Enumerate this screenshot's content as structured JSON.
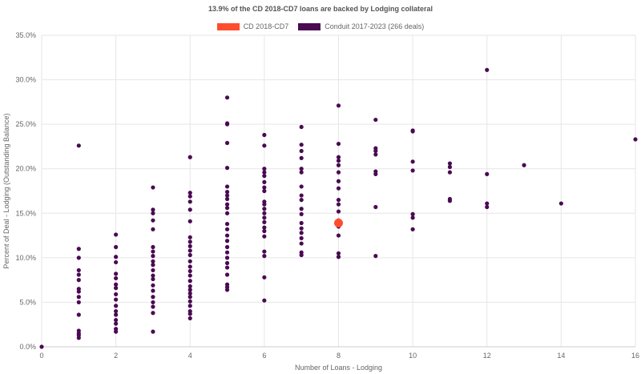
{
  "chart_data": {
    "type": "scatter",
    "title": "13.9% of the CD 2018-CD7 loans are backed by Lodging collateral",
    "xlabel": "Number of Loans - Lodging",
    "ylabel": "Percent of Deal - Lodging (Outstanding Balance)",
    "xlim": [
      0,
      16
    ],
    "ylim": [
      0,
      35
    ],
    "x_ticks": [
      "0",
      "2",
      "4",
      "6",
      "8",
      "10",
      "12",
      "14",
      "16"
    ],
    "y_ticks": [
      "0.0%",
      "5.0%",
      "10.0%",
      "15.0%",
      "20.0%",
      "25.0%",
      "30.0%",
      "35.0%"
    ],
    "grid": true,
    "legend_position": "top-center",
    "series": [
      {
        "name": "CD 2018-CD7",
        "color": "#ff4d2e",
        "points": [
          [
            8,
            13.9
          ]
        ]
      },
      {
        "name": "Conduit 2017-2023 (266 deals)",
        "color": "#4a0a52",
        "points": [
          [
            0,
            0.0
          ],
          [
            1,
            22.6
          ],
          [
            1,
            11.0
          ],
          [
            1,
            10.0
          ],
          [
            1,
            8.6
          ],
          [
            1,
            8.1
          ],
          [
            1,
            7.5
          ],
          [
            1,
            6.5
          ],
          [
            1,
            6.2
          ],
          [
            1,
            5.6
          ],
          [
            1,
            5.0
          ],
          [
            1,
            3.6
          ],
          [
            1,
            1.8
          ],
          [
            1,
            1.5
          ],
          [
            1,
            1.3
          ],
          [
            1,
            1.0
          ],
          [
            2,
            12.6
          ],
          [
            2,
            11.2
          ],
          [
            2,
            10.1
          ],
          [
            2,
            9.5
          ],
          [
            2,
            8.2
          ],
          [
            2,
            7.7
          ],
          [
            2,
            7.0
          ],
          [
            2,
            6.6
          ],
          [
            2,
            5.9
          ],
          [
            2,
            5.3
          ],
          [
            2,
            4.6
          ],
          [
            2,
            4.0
          ],
          [
            2,
            3.6
          ],
          [
            2,
            3.0
          ],
          [
            2,
            2.6
          ],
          [
            2,
            2.0
          ],
          [
            2,
            1.7
          ],
          [
            3,
            17.9
          ],
          [
            3,
            15.4
          ],
          [
            3,
            15.0
          ],
          [
            3,
            14.2
          ],
          [
            3,
            13.2
          ],
          [
            3,
            11.2
          ],
          [
            3,
            10.7
          ],
          [
            3,
            10.2
          ],
          [
            3,
            9.6
          ],
          [
            3,
            9.2
          ],
          [
            3,
            8.6
          ],
          [
            3,
            8.0
          ],
          [
            3,
            7.6
          ],
          [
            3,
            6.9
          ],
          [
            3,
            6.3
          ],
          [
            3,
            5.6
          ],
          [
            3,
            5.0
          ],
          [
            3,
            4.5
          ],
          [
            3,
            3.8
          ],
          [
            3,
            1.7
          ],
          [
            4,
            21.3
          ],
          [
            4,
            17.3
          ],
          [
            4,
            16.9
          ],
          [
            4,
            16.3
          ],
          [
            4,
            15.4
          ],
          [
            4,
            14.1
          ],
          [
            4,
            12.3
          ],
          [
            4,
            11.8
          ],
          [
            4,
            11.3
          ],
          [
            4,
            10.8
          ],
          [
            4,
            10.3
          ],
          [
            4,
            9.6
          ],
          [
            4,
            9.0
          ],
          [
            4,
            8.5
          ],
          [
            4,
            8.0
          ],
          [
            4,
            7.4
          ],
          [
            4,
            6.8
          ],
          [
            4,
            6.4
          ],
          [
            4,
            6.0
          ],
          [
            4,
            5.6
          ],
          [
            4,
            5.1
          ],
          [
            4,
            4.6
          ],
          [
            4,
            4.0
          ],
          [
            4,
            3.7
          ],
          [
            4,
            3.2
          ],
          [
            5,
            28.0
          ],
          [
            5,
            25.1
          ],
          [
            5,
            25.0
          ],
          [
            5,
            22.9
          ],
          [
            5,
            20.1
          ],
          [
            5,
            18.0
          ],
          [
            5,
            17.4
          ],
          [
            5,
            17.0
          ],
          [
            5,
            16.6
          ],
          [
            5,
            16.0
          ],
          [
            5,
            15.6
          ],
          [
            5,
            15.0
          ],
          [
            5,
            13.8
          ],
          [
            5,
            13.2
          ],
          [
            5,
            12.5
          ],
          [
            5,
            11.9
          ],
          [
            5,
            11.2
          ],
          [
            5,
            10.6
          ],
          [
            5,
            10.0
          ],
          [
            5,
            9.4
          ],
          [
            5,
            8.9
          ],
          [
            5,
            8.1
          ],
          [
            5,
            7.0
          ],
          [
            5,
            6.7
          ],
          [
            5,
            6.4
          ],
          [
            6,
            23.8
          ],
          [
            6,
            22.6
          ],
          [
            6,
            20.0
          ],
          [
            6,
            19.6
          ],
          [
            6,
            19.2
          ],
          [
            6,
            18.5
          ],
          [
            6,
            17.9
          ],
          [
            6,
            17.5
          ],
          [
            6,
            16.3
          ],
          [
            6,
            16.0
          ],
          [
            6,
            15.5
          ],
          [
            6,
            15.0
          ],
          [
            6,
            14.5
          ],
          [
            6,
            14.0
          ],
          [
            6,
            13.4
          ],
          [
            6,
            13.0
          ],
          [
            6,
            12.4
          ],
          [
            6,
            10.7
          ],
          [
            6,
            10.2
          ],
          [
            6,
            7.8
          ],
          [
            6,
            5.2
          ],
          [
            7,
            24.7
          ],
          [
            7,
            22.7
          ],
          [
            7,
            22.0
          ],
          [
            7,
            21.2
          ],
          [
            7,
            20.0
          ],
          [
            7,
            19.6
          ],
          [
            7,
            18.0
          ],
          [
            7,
            17.0
          ],
          [
            7,
            16.5
          ],
          [
            7,
            15.5
          ],
          [
            7,
            14.9
          ],
          [
            7,
            13.9
          ],
          [
            7,
            13.3
          ],
          [
            7,
            12.8
          ],
          [
            7,
            12.2
          ],
          [
            7,
            11.6
          ],
          [
            7,
            10.6
          ],
          [
            7,
            10.3
          ],
          [
            8,
            27.1
          ],
          [
            8,
            22.8
          ],
          [
            8,
            21.3
          ],
          [
            8,
            20.9
          ],
          [
            8,
            20.4
          ],
          [
            8,
            19.6
          ],
          [
            8,
            18.6
          ],
          [
            8,
            17.8
          ],
          [
            8,
            16.5
          ],
          [
            8,
            16.0
          ],
          [
            8,
            15.2
          ],
          [
            8,
            14.2
          ],
          [
            8,
            13.5
          ],
          [
            8,
            12.5
          ],
          [
            8,
            10.5
          ],
          [
            8,
            10.1
          ],
          [
            9,
            25.5
          ],
          [
            9,
            22.3
          ],
          [
            9,
            22.0
          ],
          [
            9,
            21.6
          ],
          [
            9,
            19.7
          ],
          [
            9,
            19.4
          ],
          [
            9,
            15.7
          ],
          [
            9,
            10.2
          ],
          [
            10,
            24.3
          ],
          [
            10,
            24.2
          ],
          [
            10,
            20.8
          ],
          [
            10,
            19.8
          ],
          [
            10,
            14.9
          ],
          [
            10,
            14.5
          ],
          [
            10,
            13.2
          ],
          [
            11,
            20.6
          ],
          [
            11,
            20.2
          ],
          [
            11,
            19.6
          ],
          [
            11,
            16.6
          ],
          [
            11,
            16.4
          ],
          [
            12,
            31.1
          ],
          [
            12,
            19.4
          ],
          [
            12,
            16.1
          ],
          [
            12,
            15.7
          ],
          [
            13,
            20.4
          ],
          [
            14,
            16.1
          ],
          [
            16,
            23.3
          ]
        ]
      }
    ]
  }
}
